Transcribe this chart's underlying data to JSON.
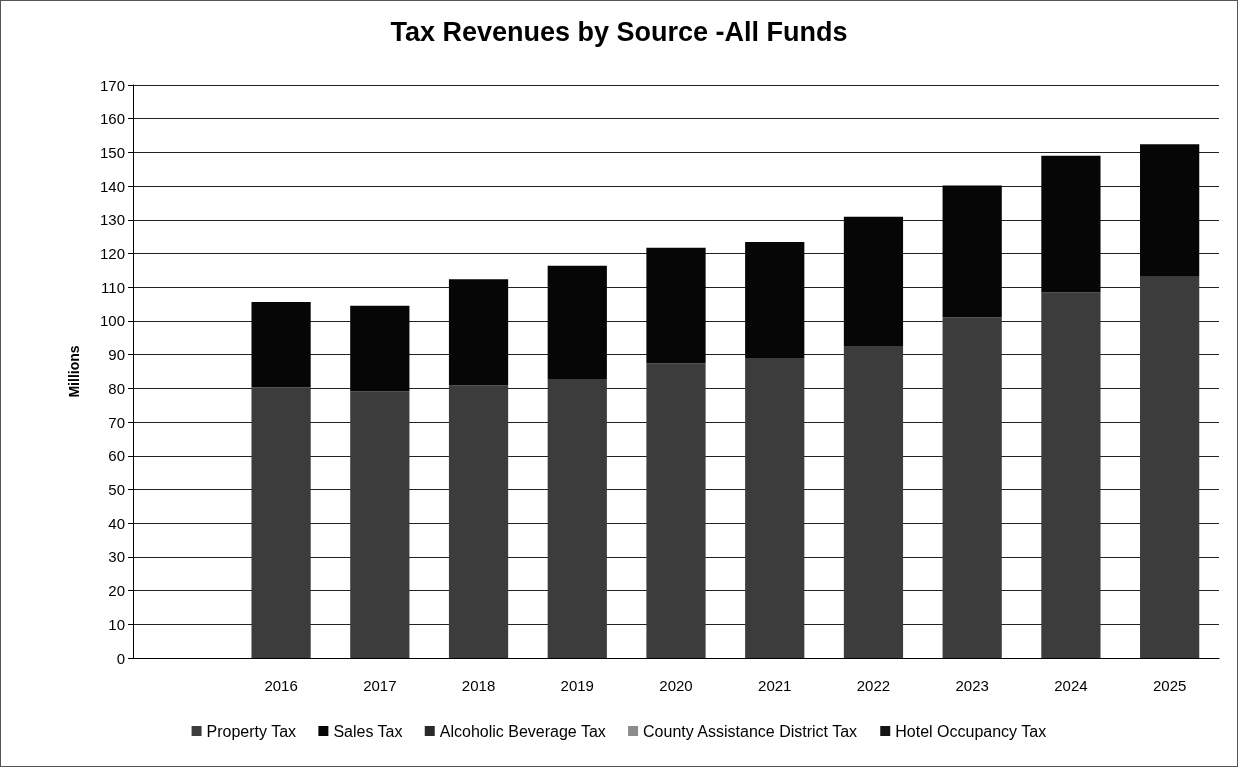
{
  "chart_data": {
    "type": "bar",
    "title": "Tax Revenues by Source -All Funds",
    "ylabel": "Millions",
    "categories": [
      null,
      "2016",
      "2017",
      "2018",
      "2019",
      "2020",
      "2021",
      "2022",
      "2023",
      "2024",
      "2025"
    ],
    "stacked": true,
    "series": [
      {
        "name": "Property Tax",
        "color": "#3c3c3c",
        "values": [
          null,
          80.3,
          79.1,
          80.9,
          82.8,
          87.4,
          89.0,
          92.6,
          101.1,
          108.5,
          113.1
        ]
      },
      {
        "name": "Sales Tax",
        "color": "#060606",
        "values": [
          null,
          25.3,
          25.4,
          31.5,
          33.6,
          34.3,
          34.4,
          38.3,
          39.1,
          40.5,
          39.3
        ]
      },
      {
        "name": "Alcoholic Beverage Tax",
        "color": "#2a2a2a",
        "values": [
          null,
          null,
          null,
          null,
          null,
          null,
          null,
          null,
          null,
          null,
          null
        ]
      },
      {
        "name": "County Assistance District Tax",
        "color": "#8c8c8c",
        "values": [
          null,
          null,
          null,
          null,
          null,
          null,
          null,
          null,
          null,
          null,
          null
        ]
      },
      {
        "name": "Hotel Occupancy Tax",
        "color": "#141414",
        "values": [
          null,
          null,
          null,
          null,
          null,
          null,
          null,
          null,
          null,
          null,
          null
        ]
      }
    ],
    "ylim": [
      0,
      170
    ],
    "yticks": [
      0,
      10,
      20,
      30,
      40,
      50,
      60,
      70,
      80,
      90,
      100,
      110,
      120,
      130,
      140,
      150,
      160,
      170
    ],
    "grid": "y",
    "legend": "bottom"
  }
}
